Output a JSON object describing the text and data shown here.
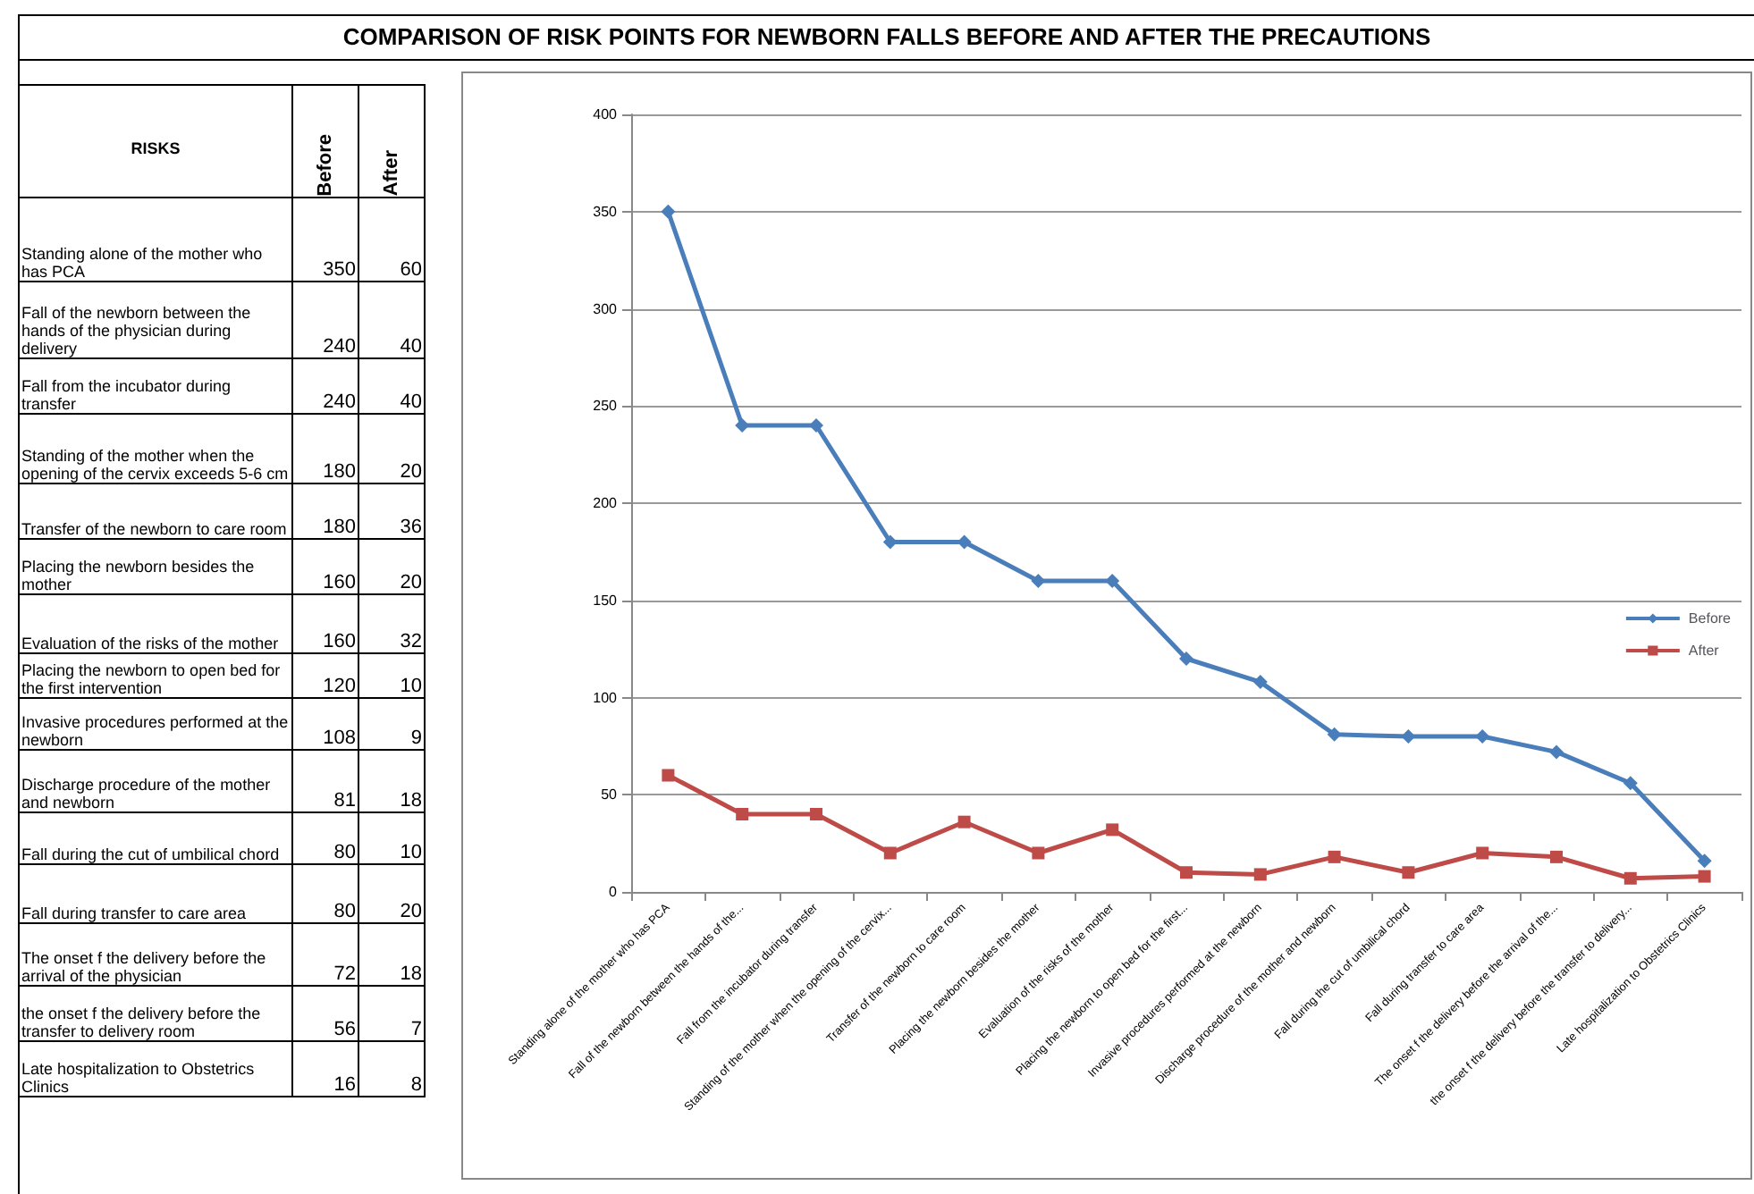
{
  "chart_data": [
    {
      "type": "other",
      "xlabel": "RISKS",
      "data_labels": true,
      "categories": [
        "Standing alone of the mother who has PCA",
        "Fall of the newborn between the hands of the physician during delivery",
        "Fall from the incubator during transfer",
        "Standing of the mother when the opening of the cervix exceeds 5-6 cm",
        "Transfer of the newborn to care room",
        "Placing the newborn besides the mother",
        "Evaluation of the risks of the mother",
        "Placing the newborn to open bed for the first intervention",
        "Invasive procedures performed at the newborn",
        "Discharge procedure of the mother and newborn",
        "Fall during the cut of umbilical chord",
        "Fall during transfer to care area",
        "The onset f the delivery before the arrival of the physician",
        "the onset f the delivery before the transfer to delivery room",
        "Late hospitalization to Obstetrics Clinics"
      ],
      "series": [
        {
          "name": "Before",
          "values": [
            350,
            240,
            240,
            180,
            180,
            160,
            160,
            120,
            108,
            81,
            80,
            80,
            72,
            56,
            16
          ]
        },
        {
          "name": "After",
          "values": [
            60,
            40,
            40,
            20,
            36,
            20,
            32,
            10,
            9,
            18,
            10,
            20,
            18,
            7,
            8
          ]
        }
      ]
    },
    {
      "type": "line",
      "title": "COMPARISON OF RISK POINTS FOR NEWBORN FALLS BEFORE AND AFTER THE PRECAUTIONS",
      "categories": [
        "Standing alone of the mother who has PCA",
        "Fall of the newborn between the hands of the...",
        "Fall from the incubator during transfer",
        "Standing of the mother when the opening of the cervix...",
        "Transfer of the newborn to care room",
        "Placing the newborn besides the mother",
        "Evaluation of the risks of the mother",
        "Placing the newborn to open bed for the first...",
        "Invasive procedures performed at the newborn",
        "Discharge procedure of the mother and newborn",
        "Fall during the cut of umbilical chord",
        "Fall during transfer to care area",
        "The onset f the delivery before the arrival of the...",
        "the onset f the delivery before the transfer to delivery...",
        "Late hospitalization to Obstetrics Clinics"
      ],
      "series": [
        {
          "name": "Before",
          "color": "#4a7ebb",
          "marker": "diamond",
          "values": [
            350,
            240,
            240,
            180,
            180,
            160,
            160,
            120,
            108,
            81,
            80,
            80,
            72,
            56,
            16
          ]
        },
        {
          "name": "After",
          "color": "#be4b48",
          "marker": "square",
          "values": [
            60,
            40,
            40,
            20,
            36,
            20,
            32,
            10,
            9,
            18,
            10,
            20,
            18,
            7,
            8
          ]
        }
      ],
      "ylim": [
        0,
        400
      ],
      "yticks": [
        0,
        50,
        100,
        150,
        200,
        250,
        300,
        350,
        400
      ],
      "grid": "y",
      "legend": "right"
    }
  ]
}
